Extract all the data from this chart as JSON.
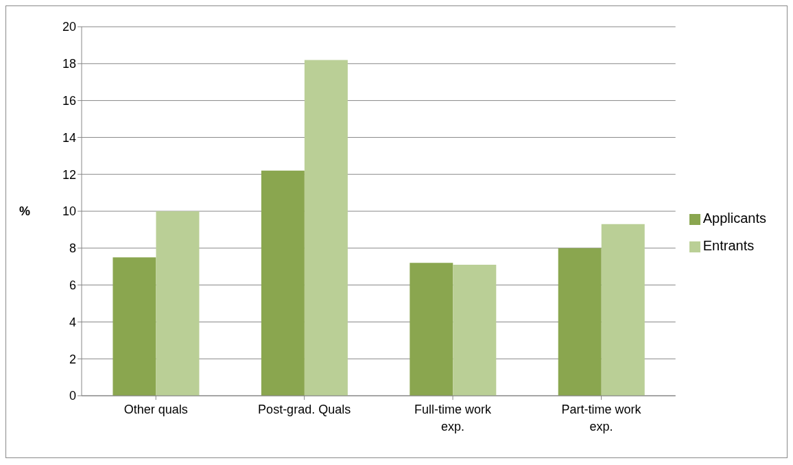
{
  "chart_data": {
    "type": "bar",
    "ylabel": "%",
    "categories": [
      "Other quals",
      "Post-grad. Quals",
      "Full-time work exp.",
      "Part-time work exp."
    ],
    "series": [
      {
        "name": "Applicants",
        "color": "#8aa64f",
        "values": [
          7.5,
          12.2,
          7.2,
          8.0
        ]
      },
      {
        "name": "Entrants",
        "color": "#bacf96",
        "values": [
          10.0,
          18.2,
          7.1,
          9.3
        ]
      }
    ],
    "ylim": [
      0,
      20
    ],
    "yticks": [
      0,
      2,
      4,
      6,
      8,
      10,
      12,
      14,
      16,
      18,
      20
    ],
    "grid": "y",
    "legend": "right"
  }
}
